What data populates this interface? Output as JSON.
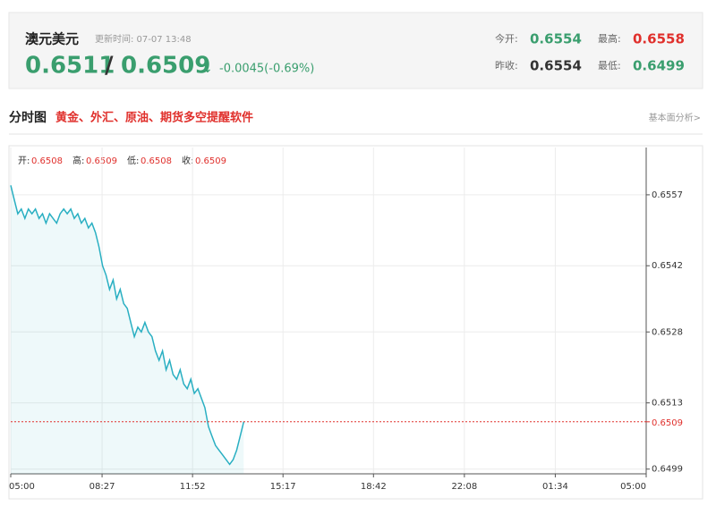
{
  "header": {
    "name": "澳元美元",
    "update_time": "更新时间: 07-07 13:48",
    "bid": "0.6511",
    "separator": "/",
    "ask": "0.6509",
    "arrow": "↓",
    "change": "-0.0045(-0.69%)",
    "stats": [
      {
        "label": "今开:",
        "value": "0.6554",
        "color": "#3a9e6e"
      },
      {
        "label": "最高:",
        "value": "0.6558",
        "color": "#e0302c"
      },
      {
        "label": "昨收:",
        "value": "0.6554",
        "color": "#333333"
      },
      {
        "label": "最低:",
        "value": "0.6499",
        "color": "#3a9e6e"
      }
    ]
  },
  "section": {
    "title": "分时图",
    "link": "黄金、外汇、原油、期货多空提醒软件",
    "more": "基本面分析>"
  },
  "chart_data": {
    "type": "line",
    "info": [
      {
        "label": "开:",
        "value": "0.6508"
      },
      {
        "label": "高:",
        "value": "0.6509"
      },
      {
        "label": "低:",
        "value": "0.6508"
      },
      {
        "label": "收:",
        "value": "0.6509"
      }
    ],
    "x": [
      0,
      8,
      16,
      24,
      32,
      40,
      48,
      56,
      64,
      72,
      80,
      88,
      96,
      104,
      112,
      120,
      128,
      136,
      144,
      152,
      160,
      168,
      176,
      184,
      192,
      200,
      208,
      216,
      224,
      232,
      240,
      248,
      256,
      264,
      272,
      280,
      288,
      296,
      304,
      312,
      320,
      328,
      336,
      344,
      352,
      360,
      368,
      376,
      384,
      392,
      400,
      408,
      416,
      424,
      432,
      440,
      448,
      456,
      464,
      472,
      480,
      488,
      496,
      504,
      512,
      520,
      528
    ],
    "series": [
      {
        "color": "#29afc2",
        "values": [
          0.6559,
          0.6556,
          0.6553,
          0.6554,
          0.6552,
          0.6554,
          0.6553,
          0.6554,
          0.6552,
          0.6553,
          0.6551,
          0.6553,
          0.6552,
          0.6551,
          0.6553,
          0.6554,
          0.6553,
          0.6554,
          0.6552,
          0.6553,
          0.6551,
          0.6552,
          0.655,
          0.6551,
          0.6549,
          0.6546,
          0.6542,
          0.654,
          0.6537,
          0.6539,
          0.6535,
          0.6537,
          0.6534,
          0.6533,
          0.653,
          0.6527,
          0.6529,
          0.6528,
          0.653,
          0.6528,
          0.6527,
          0.6524,
          0.6522,
          0.6524,
          0.652,
          0.6522,
          0.6519,
          0.6518,
          0.652,
          0.6517,
          0.6516,
          0.6518,
          0.6515,
          0.6516,
          0.6514,
          0.6512,
          0.6508,
          0.6506,
          0.6504,
          0.6503,
          0.6502,
          0.6501,
          0.65,
          0.6501,
          0.6503,
          0.6506,
          0.6509
        ]
      }
    ],
    "xlim": [
      0,
      1440
    ],
    "xticks": [
      {
        "value": 0,
        "label": "05:00"
      },
      {
        "value": 207,
        "label": "08:27"
      },
      {
        "value": 412,
        "label": "11:52"
      },
      {
        "value": 617,
        "label": "15:17"
      },
      {
        "value": 822,
        "label": "18:42"
      },
      {
        "value": 1028,
        "label": "22:08"
      },
      {
        "value": 1234,
        "label": "01:34"
      },
      {
        "value": 1440,
        "label": "05:00"
      }
    ],
    "ylim": [
      0.6498,
      0.6567
    ],
    "yticks": [
      0.6557,
      0.6542,
      0.6528,
      0.6513,
      0.6499
    ],
    "current_price": 0.6509,
    "current_color": "#e0302c",
    "grid": true
  }
}
